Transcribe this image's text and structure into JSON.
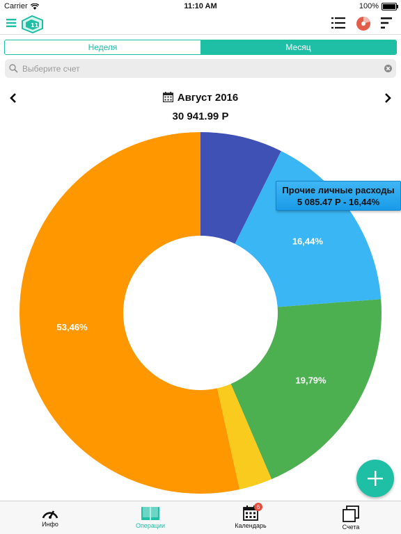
{
  "status_bar": {
    "carrier": "Carrier",
    "time": "11:10 AM",
    "battery": "100%"
  },
  "colors": {
    "accent": "#1fbfa6"
  },
  "nav": {
    "icons": [
      "menu-icon",
      "app-logo-icon",
      "list-icon",
      "pie-chart-icon",
      "sort-icon"
    ]
  },
  "period_tabs": {
    "week": "Неделя",
    "month": "Месяц",
    "selected": "month"
  },
  "search": {
    "placeholder": "Выберите счет",
    "value": ""
  },
  "period": {
    "title": "Август 2016"
  },
  "total": {
    "amount": "30 941.99 P"
  },
  "tooltip": {
    "category": "Прочие личные расходы",
    "detail": "5 085.47 P - 16,44%"
  },
  "chart_data": {
    "type": "pie",
    "variant": "donut",
    "slices": [
      {
        "value": 7.35,
        "label": "",
        "color": "#3f51b5"
      },
      {
        "value": 16.44,
        "label": "16,44%",
        "color": "#39b6f3"
      },
      {
        "value": 19.79,
        "label": "19,79%",
        "color": "#4caf50"
      },
      {
        "value": 2.96,
        "label": "",
        "color": "#f9cb1f"
      },
      {
        "value": 53.46,
        "label": "53,46%",
        "color": "#ff9800"
      }
    ],
    "start_angle": "top",
    "direction": "clockwise"
  },
  "tabs": [
    {
      "label": "Инфо",
      "icon": "speedometer-icon",
      "active": false
    },
    {
      "label": "Операции",
      "icon": "book-icon",
      "active": true
    },
    {
      "label": "Календарь",
      "icon": "calendar-icon",
      "active": false,
      "badge": "6"
    },
    {
      "label": "Счета",
      "icon": "accounts-icon",
      "active": false
    }
  ]
}
